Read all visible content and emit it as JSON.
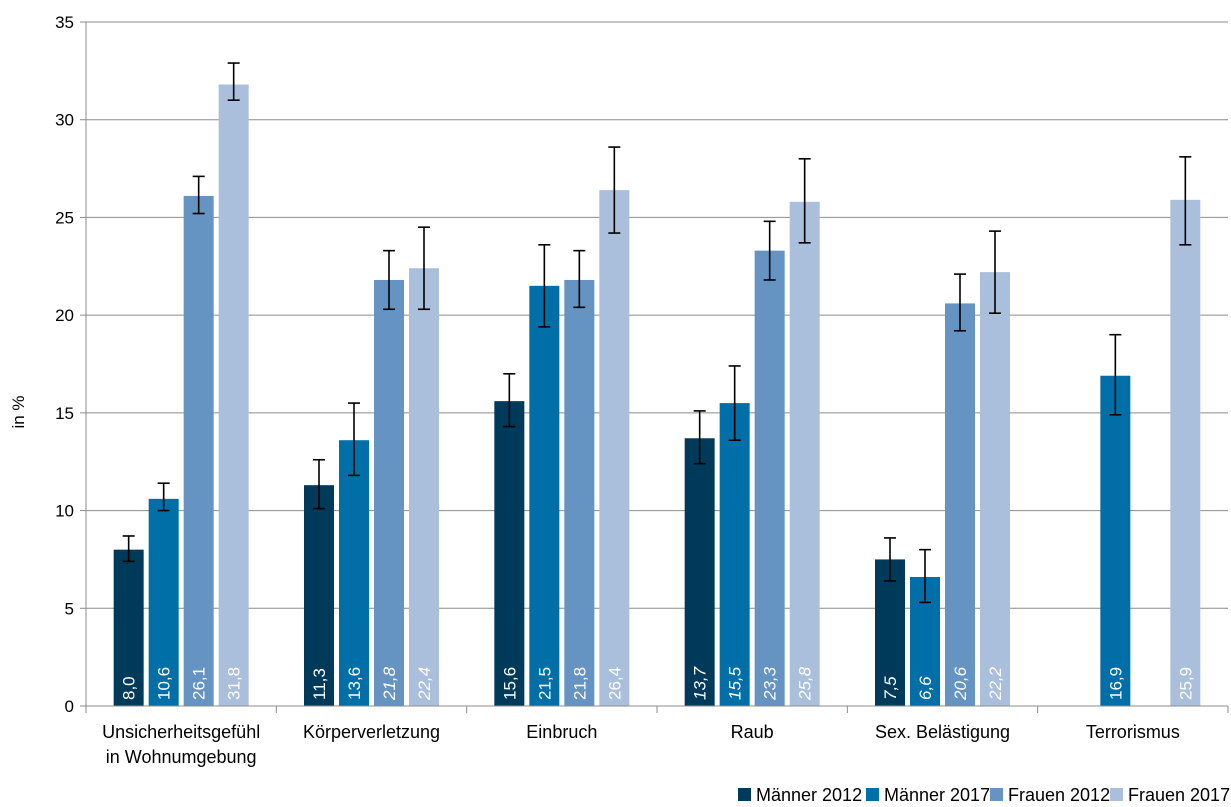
{
  "chart_data": {
    "type": "bar",
    "ylabel": "in %",
    "ylim": [
      0,
      35
    ],
    "yticks": [
      0,
      5,
      10,
      15,
      20,
      25,
      30,
      35
    ],
    "categories": [
      [
        "Unsicherheitsgefühl",
        "in Wohnumgebung"
      ],
      [
        "Körperverletzung"
      ],
      [
        "Einbruch"
      ],
      [
        "Raub"
      ],
      [
        "Sex. Belästigung"
      ],
      [
        "Terrorismus"
      ]
    ],
    "series": [
      {
        "name": "Männer 2012",
        "color": "#003a5a",
        "values": [
          8.0,
          11.3,
          15.6,
          13.7,
          7.5,
          null
        ],
        "labels": [
          "8,0",
          "11,3",
          "15,6",
          "13,7",
          "7,5",
          ""
        ],
        "italic": [
          false,
          false,
          false,
          true,
          true,
          false
        ],
        "err_low": [
          7.4,
          10.1,
          14.3,
          12.4,
          6.4,
          null
        ],
        "err_high": [
          8.7,
          12.6,
          17.0,
          15.1,
          8.6,
          null
        ]
      },
      {
        "name": "Männer 2017",
        "color": "#006fa8",
        "values": [
          10.6,
          13.6,
          21.5,
          15.5,
          6.6,
          16.9
        ],
        "labels": [
          "10,6",
          "13,6",
          "21,5",
          "15,5",
          "6,6",
          "16,9"
        ],
        "italic": [
          false,
          false,
          false,
          true,
          true,
          false
        ],
        "err_low": [
          10.0,
          11.8,
          19.4,
          13.6,
          5.3,
          14.9
        ],
        "err_high": [
          11.4,
          15.5,
          23.6,
          17.4,
          8.0,
          19.0
        ]
      },
      {
        "name": "Frauen 2012",
        "color": "#6593c2",
        "values": [
          26.1,
          21.8,
          21.8,
          23.3,
          20.6,
          null
        ],
        "labels": [
          "26,1",
          "21,8",
          "21,8",
          "23,3",
          "20,6",
          ""
        ],
        "italic": [
          false,
          true,
          false,
          true,
          true,
          false
        ],
        "err_low": [
          25.2,
          20.3,
          20.4,
          21.8,
          19.2,
          null
        ],
        "err_high": [
          27.1,
          23.3,
          23.3,
          24.8,
          22.1,
          null
        ]
      },
      {
        "name": "Frauen 2017",
        "color": "#a9bfdb",
        "values": [
          31.8,
          22.4,
          26.4,
          25.8,
          22.2,
          25.9
        ],
        "labels": [
          "31,8",
          "22,4",
          "26,4",
          "25,8",
          "22,2",
          "25,9"
        ],
        "italic": [
          false,
          true,
          false,
          true,
          true,
          false
        ],
        "err_low": [
          31.0,
          20.3,
          24.2,
          23.7,
          20.1,
          23.6
        ],
        "err_high": [
          32.9,
          24.5,
          28.6,
          28.0,
          24.3,
          28.1
        ]
      }
    ],
    "grid": true,
    "legend_position": "bottom-right"
  }
}
